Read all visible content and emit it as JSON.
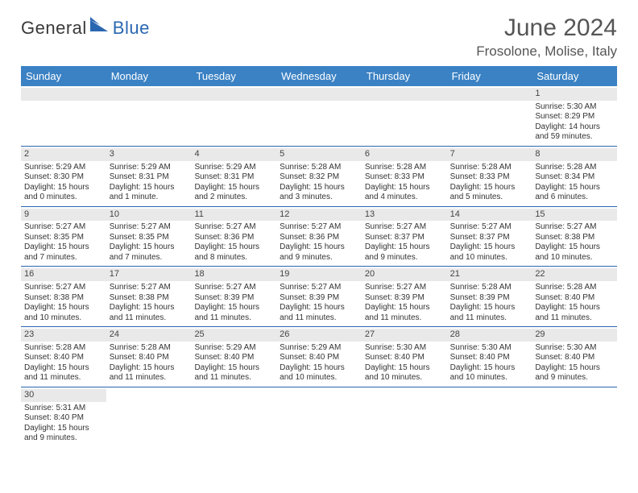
{
  "colors": {
    "header_bar": "#3b82c4",
    "accent": "#2a67b1",
    "daynum_bg": "#e9e9e9",
    "text": "#333333",
    "title_text": "#555555",
    "bg": "#ffffff"
  },
  "typography": {
    "base_family": "Arial, Helvetica, sans-serif",
    "title_fontsize": 30,
    "location_fontsize": 17,
    "weekday_fontsize": 13,
    "cell_fontsize": 10
  },
  "logo": {
    "text1": "General",
    "text2": "Blue"
  },
  "title": {
    "month": "June 2024",
    "location": "Frosolone, Molise, Italy"
  },
  "weekdays": [
    "Sunday",
    "Monday",
    "Tuesday",
    "Wednesday",
    "Thursday",
    "Friday",
    "Saturday"
  ],
  "weeks": [
    [
      null,
      null,
      null,
      null,
      null,
      null,
      {
        "n": "1",
        "sr": "Sunrise: 5:30 AM",
        "ss": "Sunset: 8:29 PM",
        "dl1": "Daylight: 14 hours",
        "dl2": "and 59 minutes."
      }
    ],
    [
      {
        "n": "2",
        "sr": "Sunrise: 5:29 AM",
        "ss": "Sunset: 8:30 PM",
        "dl1": "Daylight: 15 hours",
        "dl2": "and 0 minutes."
      },
      {
        "n": "3",
        "sr": "Sunrise: 5:29 AM",
        "ss": "Sunset: 8:31 PM",
        "dl1": "Daylight: 15 hours",
        "dl2": "and 1 minute."
      },
      {
        "n": "4",
        "sr": "Sunrise: 5:29 AM",
        "ss": "Sunset: 8:31 PM",
        "dl1": "Daylight: 15 hours",
        "dl2": "and 2 minutes."
      },
      {
        "n": "5",
        "sr": "Sunrise: 5:28 AM",
        "ss": "Sunset: 8:32 PM",
        "dl1": "Daylight: 15 hours",
        "dl2": "and 3 minutes."
      },
      {
        "n": "6",
        "sr": "Sunrise: 5:28 AM",
        "ss": "Sunset: 8:33 PM",
        "dl1": "Daylight: 15 hours",
        "dl2": "and 4 minutes."
      },
      {
        "n": "7",
        "sr": "Sunrise: 5:28 AM",
        "ss": "Sunset: 8:33 PM",
        "dl1": "Daylight: 15 hours",
        "dl2": "and 5 minutes."
      },
      {
        "n": "8",
        "sr": "Sunrise: 5:28 AM",
        "ss": "Sunset: 8:34 PM",
        "dl1": "Daylight: 15 hours",
        "dl2": "and 6 minutes."
      }
    ],
    [
      {
        "n": "9",
        "sr": "Sunrise: 5:27 AM",
        "ss": "Sunset: 8:35 PM",
        "dl1": "Daylight: 15 hours",
        "dl2": "and 7 minutes."
      },
      {
        "n": "10",
        "sr": "Sunrise: 5:27 AM",
        "ss": "Sunset: 8:35 PM",
        "dl1": "Daylight: 15 hours",
        "dl2": "and 7 minutes."
      },
      {
        "n": "11",
        "sr": "Sunrise: 5:27 AM",
        "ss": "Sunset: 8:36 PM",
        "dl1": "Daylight: 15 hours",
        "dl2": "and 8 minutes."
      },
      {
        "n": "12",
        "sr": "Sunrise: 5:27 AM",
        "ss": "Sunset: 8:36 PM",
        "dl1": "Daylight: 15 hours",
        "dl2": "and 9 minutes."
      },
      {
        "n": "13",
        "sr": "Sunrise: 5:27 AM",
        "ss": "Sunset: 8:37 PM",
        "dl1": "Daylight: 15 hours",
        "dl2": "and 9 minutes."
      },
      {
        "n": "14",
        "sr": "Sunrise: 5:27 AM",
        "ss": "Sunset: 8:37 PM",
        "dl1": "Daylight: 15 hours",
        "dl2": "and 10 minutes."
      },
      {
        "n": "15",
        "sr": "Sunrise: 5:27 AM",
        "ss": "Sunset: 8:38 PM",
        "dl1": "Daylight: 15 hours",
        "dl2": "and 10 minutes."
      }
    ],
    [
      {
        "n": "16",
        "sr": "Sunrise: 5:27 AM",
        "ss": "Sunset: 8:38 PM",
        "dl1": "Daylight: 15 hours",
        "dl2": "and 10 minutes."
      },
      {
        "n": "17",
        "sr": "Sunrise: 5:27 AM",
        "ss": "Sunset: 8:38 PM",
        "dl1": "Daylight: 15 hours",
        "dl2": "and 11 minutes."
      },
      {
        "n": "18",
        "sr": "Sunrise: 5:27 AM",
        "ss": "Sunset: 8:39 PM",
        "dl1": "Daylight: 15 hours",
        "dl2": "and 11 minutes."
      },
      {
        "n": "19",
        "sr": "Sunrise: 5:27 AM",
        "ss": "Sunset: 8:39 PM",
        "dl1": "Daylight: 15 hours",
        "dl2": "and 11 minutes."
      },
      {
        "n": "20",
        "sr": "Sunrise: 5:27 AM",
        "ss": "Sunset: 8:39 PM",
        "dl1": "Daylight: 15 hours",
        "dl2": "and 11 minutes."
      },
      {
        "n": "21",
        "sr": "Sunrise: 5:28 AM",
        "ss": "Sunset: 8:39 PM",
        "dl1": "Daylight: 15 hours",
        "dl2": "and 11 minutes."
      },
      {
        "n": "22",
        "sr": "Sunrise: 5:28 AM",
        "ss": "Sunset: 8:40 PM",
        "dl1": "Daylight: 15 hours",
        "dl2": "and 11 minutes."
      }
    ],
    [
      {
        "n": "23",
        "sr": "Sunrise: 5:28 AM",
        "ss": "Sunset: 8:40 PM",
        "dl1": "Daylight: 15 hours",
        "dl2": "and 11 minutes."
      },
      {
        "n": "24",
        "sr": "Sunrise: 5:28 AM",
        "ss": "Sunset: 8:40 PM",
        "dl1": "Daylight: 15 hours",
        "dl2": "and 11 minutes."
      },
      {
        "n": "25",
        "sr": "Sunrise: 5:29 AM",
        "ss": "Sunset: 8:40 PM",
        "dl1": "Daylight: 15 hours",
        "dl2": "and 11 minutes."
      },
      {
        "n": "26",
        "sr": "Sunrise: 5:29 AM",
        "ss": "Sunset: 8:40 PM",
        "dl1": "Daylight: 15 hours",
        "dl2": "and 10 minutes."
      },
      {
        "n": "27",
        "sr": "Sunrise: 5:30 AM",
        "ss": "Sunset: 8:40 PM",
        "dl1": "Daylight: 15 hours",
        "dl2": "and 10 minutes."
      },
      {
        "n": "28",
        "sr": "Sunrise: 5:30 AM",
        "ss": "Sunset: 8:40 PM",
        "dl1": "Daylight: 15 hours",
        "dl2": "and 10 minutes."
      },
      {
        "n": "29",
        "sr": "Sunrise: 5:30 AM",
        "ss": "Sunset: 8:40 PM",
        "dl1": "Daylight: 15 hours",
        "dl2": "and 9 minutes."
      }
    ],
    [
      {
        "n": "30",
        "sr": "Sunrise: 5:31 AM",
        "ss": "Sunset: 8:40 PM",
        "dl1": "Daylight: 15 hours",
        "dl2": "and 9 minutes."
      },
      null,
      null,
      null,
      null,
      null,
      null
    ]
  ]
}
